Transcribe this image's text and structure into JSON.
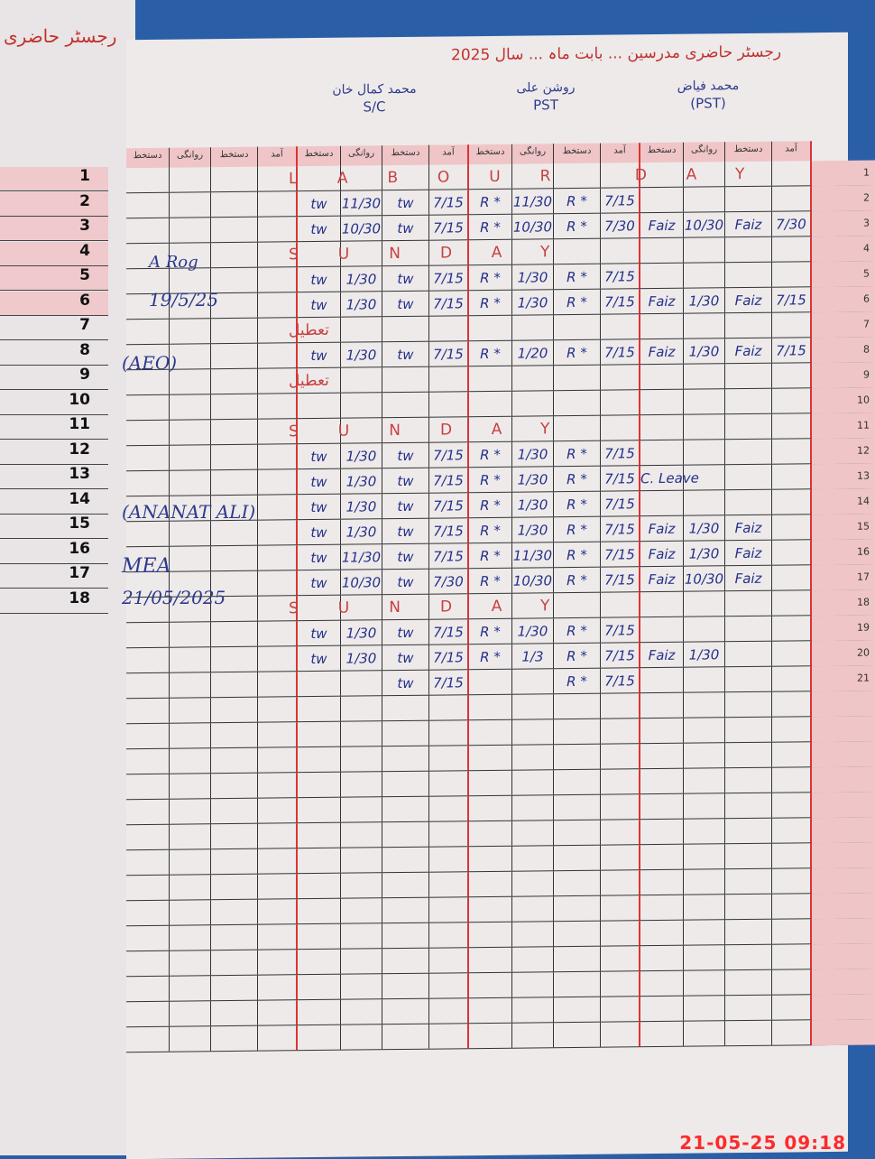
{
  "left_page": {
    "title": "رجسٹر حاضری",
    "row_numbers": [
      "1",
      "2",
      "3",
      "4",
      "5",
      "6",
      "7",
      "8",
      "9",
      "10",
      "11",
      "12",
      "13",
      "14",
      "15",
      "16",
      "17",
      "18"
    ],
    "annotations": {
      "initials": "A Rog",
      "date1": "19/5/25",
      "office": "(AEO)",
      "name": "(ANANAT ALI)",
      "designation": "MEA",
      "date2": "21/05/2025"
    }
  },
  "register": {
    "title": "رجسٹر حاضری مدرسین ... بابت ماہ ... سال 2025",
    "teachers": [
      {
        "name": "محمد کمال خان",
        "designation": "S/C"
      },
      {
        "name": "روشن علی",
        "designation": "PST"
      },
      {
        "name": "محمد فیاض",
        "designation": "(PST)"
      }
    ],
    "column_headers": [
      "دستخط",
      "روانگی",
      "دستخط",
      "آمد"
    ],
    "rows": [
      {
        "day": "1",
        "note": "LABOUR DAY"
      },
      {
        "day": "2",
        "t1": [
          "tw",
          "11/30",
          "tw",
          "7/15"
        ],
        "t2": [
          "R *",
          "11/30",
          "R *",
          "7/15"
        ],
        "t3": [
          "",
          "",
          "",
          ""
        ]
      },
      {
        "day": "3",
        "t1": [
          "tw",
          "10/30",
          "tw",
          "7/15"
        ],
        "t2": [
          "R *",
          "10/30",
          "R *",
          "7/30"
        ],
        "t3": [
          "Faiz",
          "10/30",
          "Faiz",
          "7/30"
        ]
      },
      {
        "day": "4",
        "note": "SUNDAY"
      },
      {
        "day": "5",
        "t1": [
          "tw",
          "1/30",
          "tw",
          "7/15"
        ],
        "t2": [
          "R *",
          "1/30",
          "R *",
          "7/15"
        ],
        "t3": [
          "",
          "",
          "",
          ""
        ]
      },
      {
        "day": "6",
        "t1": [
          "tw",
          "1/30",
          "tw",
          "7/15"
        ],
        "t2": [
          "R *",
          "1/30",
          "R *",
          "7/15"
        ],
        "t3": [
          "Faiz",
          "1/30",
          "Faiz",
          "7/15"
        ]
      },
      {
        "day": "7",
        "note": "تعطیل"
      },
      {
        "day": "8",
        "t1": [
          "tw",
          "1/30",
          "tw",
          "7/15"
        ],
        "t2": [
          "R *",
          "1/20",
          "R *",
          "7/15"
        ],
        "t3": [
          "Faiz",
          "1/30",
          "Faiz",
          "7/15"
        ]
      },
      {
        "day": "9",
        "note": "تعطیل"
      },
      {
        "day": "10",
        "t1": [
          "",
          "",
          "",
          ""
        ],
        "t2": [
          "",
          "",
          "",
          ""
        ],
        "t3": [
          "",
          "",
          "",
          ""
        ]
      },
      {
        "day": "11",
        "note": "SUNDAY"
      },
      {
        "day": "12",
        "t1": [
          "tw",
          "1/30",
          "tw",
          "7/15"
        ],
        "t2": [
          "R *",
          "1/30",
          "R *",
          "7/15"
        ],
        "t3": [
          "",
          "",
          "",
          ""
        ]
      },
      {
        "day": "13",
        "t1": [
          "tw",
          "1/30",
          "tw",
          "7/15"
        ],
        "t2": [
          "R *",
          "1/30",
          "R *",
          "7/15"
        ],
        "t3": [
          "C. Leave",
          "",
          "",
          ""
        ]
      },
      {
        "day": "14",
        "t1": [
          "tw",
          "1/30",
          "tw",
          "7/15"
        ],
        "t2": [
          "R *",
          "1/30",
          "R *",
          "7/15"
        ],
        "t3": [
          "",
          "",
          "",
          ""
        ]
      },
      {
        "day": "15",
        "t1": [
          "tw",
          "1/30",
          "tw",
          "7/15"
        ],
        "t2": [
          "R *",
          "1/30",
          "R *",
          "7/15"
        ],
        "t3": [
          "Faiz",
          "1/30",
          "Faiz",
          ""
        ]
      },
      {
        "day": "16",
        "t1": [
          "tw",
          "11/30",
          "tw",
          "7/15"
        ],
        "t2": [
          "R *",
          "11/30",
          "R *",
          "7/15"
        ],
        "t3": [
          "Faiz",
          "1/30",
          "Faiz",
          ""
        ]
      },
      {
        "day": "17",
        "t1": [
          "tw",
          "10/30",
          "tw",
          "7/30"
        ],
        "t2": [
          "R *",
          "10/30",
          "R *",
          "7/15"
        ],
        "t3": [
          "Faiz",
          "10/30",
          "Faiz",
          ""
        ]
      },
      {
        "day": "18",
        "note": "SUNDAY"
      },
      {
        "day": "19",
        "t1": [
          "tw",
          "1/30",
          "tw",
          "7/15"
        ],
        "t2": [
          "R *",
          "1/30",
          "R *",
          "7/15"
        ],
        "t3": [
          "",
          "",
          "",
          ""
        ]
      },
      {
        "day": "20",
        "t1": [
          "tw",
          "1/30",
          "tw",
          "7/15"
        ],
        "t2": [
          "R *",
          "1/3",
          "R *",
          "7/15"
        ],
        "t3": [
          "Faiz",
          "1/30",
          "",
          ""
        ]
      },
      {
        "day": "21",
        "t1": [
          "",
          "",
          "tw",
          "7/15"
        ],
        "t2": [
          "",
          "",
          "R *",
          "7/15"
        ],
        "t3": [
          "",
          "",
          "",
          ""
        ]
      }
    ],
    "blank_rows": 14
  },
  "timestamp": "21-05-25  09:18",
  "colors": {
    "ink_blue": "#23308a",
    "ink_red": "#c84040",
    "rule_red": "#d33333",
    "header_pink": "#efc5c8"
  }
}
